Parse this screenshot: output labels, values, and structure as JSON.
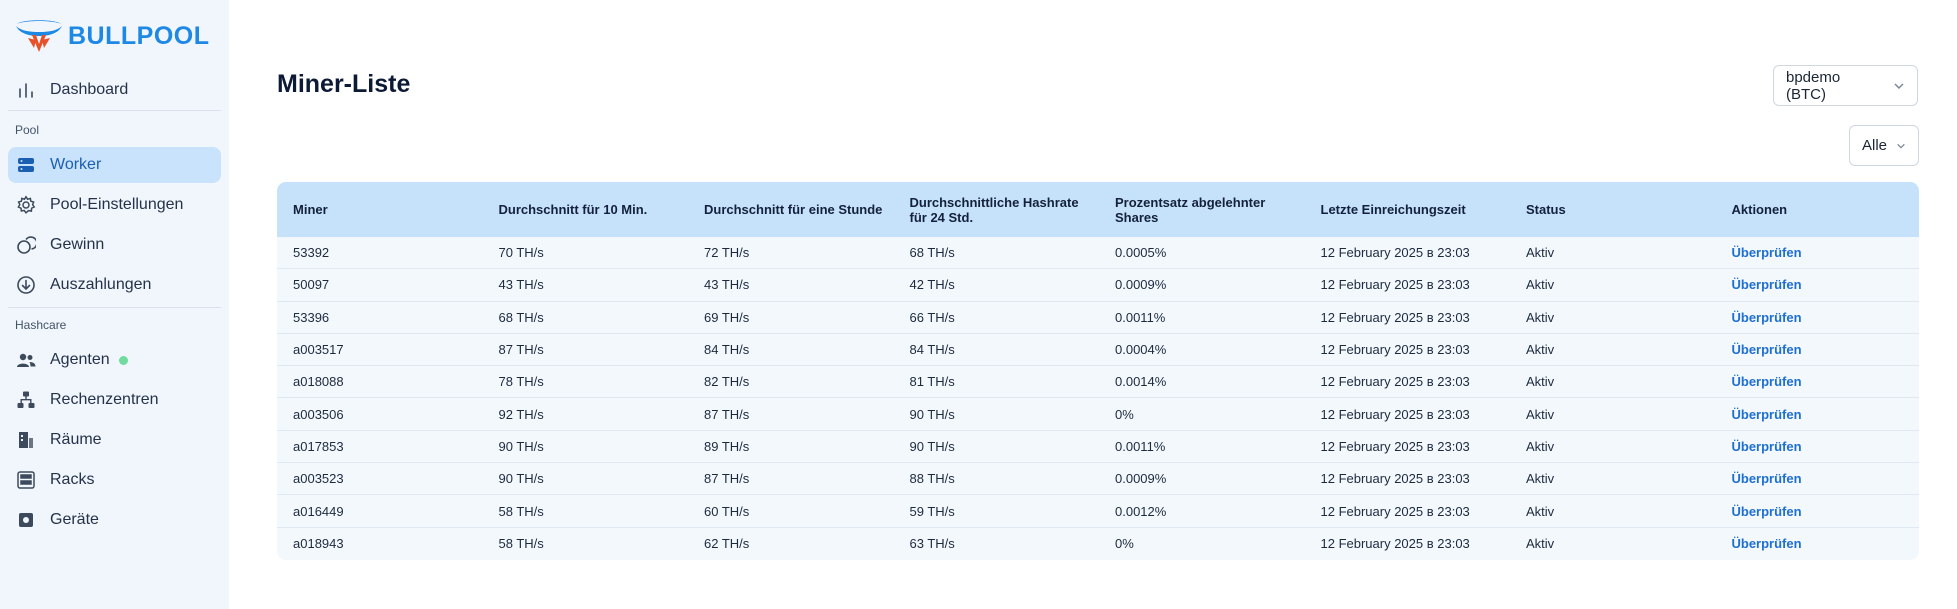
{
  "brand": {
    "name": "BULLPOOL",
    "accent": "#1e88e5",
    "logo_arrow": "#e8502a"
  },
  "sidebar": {
    "items_top": [
      {
        "label": "Dashboard",
        "icon": "bar-chart-icon"
      }
    ],
    "section_pool": "Pool",
    "items_pool": [
      {
        "label": "Worker",
        "icon": "server-icon",
        "active": true
      },
      {
        "label": "Pool-Einstellungen",
        "icon": "gear-icon"
      },
      {
        "label": "Gewinn",
        "icon": "coins-icon"
      },
      {
        "label": "Auszahlungen",
        "icon": "download-circle-icon"
      }
    ],
    "section_hashcare": "Hashcare",
    "items_hashcare": [
      {
        "label": "Agenten",
        "icon": "users-icon",
        "status": "online"
      },
      {
        "label": "Rechenzentren",
        "icon": "network-icon"
      },
      {
        "label": "Räume",
        "icon": "room-icon"
      },
      {
        "label": "Racks",
        "icon": "rack-icon"
      },
      {
        "label": "Geräte",
        "icon": "chip-icon"
      }
    ]
  },
  "main": {
    "title": "Miner-Liste",
    "pool_select": {
      "value": "bpdemo (BTC)"
    },
    "filter_select": {
      "value": "Alle"
    }
  },
  "table": {
    "headers": [
      "Miner",
      "Durchschnitt für 10 Min.",
      "Durchschnitt für eine Stunde",
      "Durchschnittliche Hashrate für 24 Std.",
      "Prozentsatz abgelehnter Shares",
      "Letzte Einreichungszeit",
      "Status",
      "Aktionen"
    ],
    "rows": [
      [
        "53392",
        "70 TH/s",
        "72 TH/s",
        "68 TH/s",
        "0.0005%",
        "12 February 2025 в 23:03",
        "Aktiv",
        "Überprüfen"
      ],
      [
        "50097",
        "43 TH/s",
        "43 TH/s",
        "42 TH/s",
        "0.0009%",
        "12 February 2025 в 23:03",
        "Aktiv",
        "Überprüfen"
      ],
      [
        "53396",
        "68 TH/s",
        "69 TH/s",
        "66 TH/s",
        "0.0011%",
        "12 February 2025 в 23:03",
        "Aktiv",
        "Überprüfen"
      ],
      [
        "a003517",
        "87 TH/s",
        "84 TH/s",
        "84 TH/s",
        "0.0004%",
        "12 February 2025 в 23:03",
        "Aktiv",
        "Überprüfen"
      ],
      [
        "a018088",
        "78 TH/s",
        "82 TH/s",
        "81 TH/s",
        "0.0014%",
        "12 February 2025 в 23:03",
        "Aktiv",
        "Überprüfen"
      ],
      [
        "a003506",
        "92 TH/s",
        "87 TH/s",
        "90 TH/s",
        "0%",
        "12 February 2025 в 23:03",
        "Aktiv",
        "Überprüfen"
      ],
      [
        "a017853",
        "90 TH/s",
        "89 TH/s",
        "90 TH/s",
        "0.0011%",
        "12 February 2025 в 23:03",
        "Aktiv",
        "Überprüfen"
      ],
      [
        "a003523",
        "90 TH/s",
        "87 TH/s",
        "88 TH/s",
        "0.0009%",
        "12 February 2025 в 23:03",
        "Aktiv",
        "Überprüfen"
      ],
      [
        "a016449",
        "58 TH/s",
        "60 TH/s",
        "59 TH/s",
        "0.0012%",
        "12 February 2025 в 23:03",
        "Aktiv",
        "Überprüfen"
      ],
      [
        "a018943",
        "58 TH/s",
        "62 TH/s",
        "63 TH/s",
        "0%",
        "12 February 2025 в 23:03",
        "Aktiv",
        "Überprüfen"
      ]
    ]
  }
}
